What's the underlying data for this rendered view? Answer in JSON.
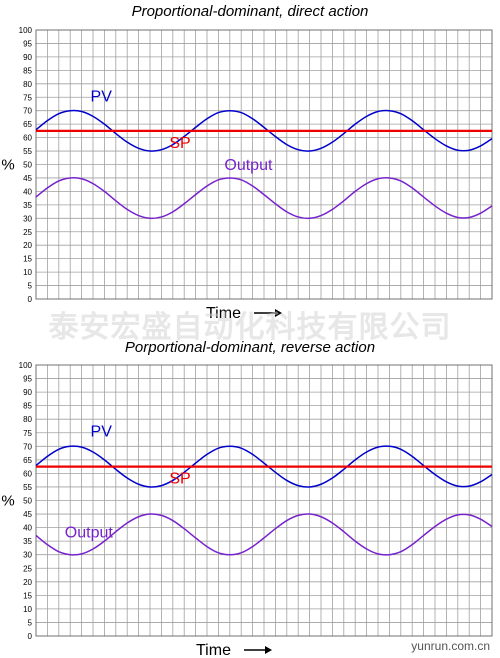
{
  "watermark": "泰安宏盛自动化科技有限公司",
  "site": "yunrun.com.cn",
  "chart_data": [
    {
      "type": "line",
      "title": "Proportional-dominant, direct action",
      "xlabel": "Time",
      "ylabel": "%",
      "ylim": [
        0,
        100
      ],
      "yticks": [
        0,
        5,
        10,
        15,
        20,
        25,
        30,
        35,
        40,
        45,
        50,
        55,
        60,
        65,
        70,
        75,
        80,
        85,
        90,
        95,
        100
      ],
      "grid": true,
      "x": [
        0,
        1,
        2,
        3,
        4,
        5,
        6,
        7,
        8,
        9,
        10,
        11,
        12,
        13,
        14,
        15,
        16,
        17,
        18,
        19,
        20,
        21,
        22,
        23,
        24,
        25,
        26,
        27,
        28,
        29,
        30,
        31,
        32,
        33,
        34,
        35,
        36,
        37,
        38,
        39,
        40
      ],
      "series": [
        {
          "name": "PV",
          "color": "#0000cc",
          "values": [
            62.9,
            66.3,
            68.9,
            70.0,
            69.7,
            67.9,
            65.0,
            61.5,
            58.3,
            56.0,
            55.0,
            55.5,
            57.4,
            60.4,
            63.8,
            67.0,
            69.3,
            70.0,
            69.3,
            67.0,
            63.8,
            60.4,
            57.4,
            55.5,
            55.0,
            56.0,
            58.3,
            61.5,
            65.0,
            67.9,
            69.7,
            70.0,
            68.9,
            66.3,
            62.9,
            59.6,
            56.9,
            55.3,
            55.3,
            56.9,
            59.6
          ]
        },
        {
          "name": "SP",
          "color": "#ee0000",
          "values": [
            62.5,
            62.5,
            62.5,
            62.5,
            62.5,
            62.5,
            62.5,
            62.5,
            62.5,
            62.5,
            62.5,
            62.5,
            62.5,
            62.5,
            62.5,
            62.5,
            62.5,
            62.5,
            62.5,
            62.5,
            62.5,
            62.5,
            62.5,
            62.5,
            62.5,
            62.5,
            62.5,
            62.5,
            62.5,
            62.5,
            62.5,
            62.5,
            62.5,
            62.5,
            62.5,
            62.5,
            62.5,
            62.5,
            62.5,
            62.5,
            62.5
          ]
        },
        {
          "name": "Output",
          "color": "#7722cc",
          "values": [
            37.9,
            41.3,
            43.9,
            45.0,
            44.7,
            42.9,
            40.0,
            36.5,
            33.3,
            31.0,
            30.0,
            30.5,
            32.4,
            35.4,
            38.8,
            42.0,
            44.3,
            45.0,
            44.3,
            42.0,
            38.8,
            35.4,
            32.4,
            30.5,
            30.0,
            31.0,
            33.3,
            36.5,
            40.0,
            42.9,
            44.7,
            45.0,
            43.9,
            41.3,
            37.9,
            34.6,
            31.9,
            30.3,
            30.3,
            31.9,
            34.6
          ]
        }
      ]
    },
    {
      "type": "line",
      "title": "Porportional-dominant, reverse action",
      "xlabel": "Time",
      "ylabel": "%",
      "ylim": [
        0,
        100
      ],
      "yticks": [
        0,
        5,
        10,
        15,
        20,
        25,
        30,
        35,
        40,
        45,
        50,
        55,
        60,
        65,
        70,
        75,
        80,
        85,
        90,
        95,
        100
      ],
      "grid": true,
      "x": [
        0,
        1,
        2,
        3,
        4,
        5,
        6,
        7,
        8,
        9,
        10,
        11,
        12,
        13,
        14,
        15,
        16,
        17,
        18,
        19,
        20,
        21,
        22,
        23,
        24,
        25,
        26,
        27,
        28,
        29,
        30,
        31,
        32,
        33,
        34,
        35,
        36,
        37,
        38,
        39,
        40
      ],
      "series": [
        {
          "name": "PV",
          "color": "#0000cc",
          "values": [
            62.9,
            66.3,
            68.9,
            70.0,
            69.7,
            67.9,
            65.0,
            61.5,
            58.3,
            56.0,
            55.0,
            55.5,
            57.4,
            60.4,
            63.8,
            67.0,
            69.3,
            70.0,
            69.3,
            67.0,
            63.8,
            60.4,
            57.4,
            55.5,
            55.0,
            56.0,
            58.3,
            61.5,
            65.0,
            67.9,
            69.7,
            70.0,
            68.9,
            66.3,
            62.9,
            59.6,
            56.9,
            55.3,
            55.3,
            56.9,
            59.6
          ]
        },
        {
          "name": "SP",
          "color": "#ee0000",
          "values": [
            62.5,
            62.5,
            62.5,
            62.5,
            62.5,
            62.5,
            62.5,
            62.5,
            62.5,
            62.5,
            62.5,
            62.5,
            62.5,
            62.5,
            62.5,
            62.5,
            62.5,
            62.5,
            62.5,
            62.5,
            62.5,
            62.5,
            62.5,
            62.5,
            62.5,
            62.5,
            62.5,
            62.5,
            62.5,
            62.5,
            62.5,
            62.5,
            62.5,
            62.5,
            62.5,
            62.5,
            62.5,
            62.5,
            62.5,
            62.5,
            62.5
          ]
        },
        {
          "name": "Output",
          "color": "#7722cc",
          "values": [
            37.1,
            33.7,
            31.1,
            30.0,
            30.3,
            32.1,
            35.0,
            38.5,
            41.7,
            44.0,
            45.0,
            44.5,
            42.6,
            39.6,
            36.2,
            33.0,
            30.7,
            30.0,
            30.7,
            33.0,
            36.2,
            39.6,
            42.6,
            44.5,
            45.0,
            44.0,
            41.7,
            38.5,
            35.0,
            32.1,
            30.3,
            30.0,
            31.1,
            33.7,
            37.1,
            40.4,
            43.1,
            44.7,
            44.7,
            43.1,
            40.4
          ]
        }
      ]
    }
  ]
}
